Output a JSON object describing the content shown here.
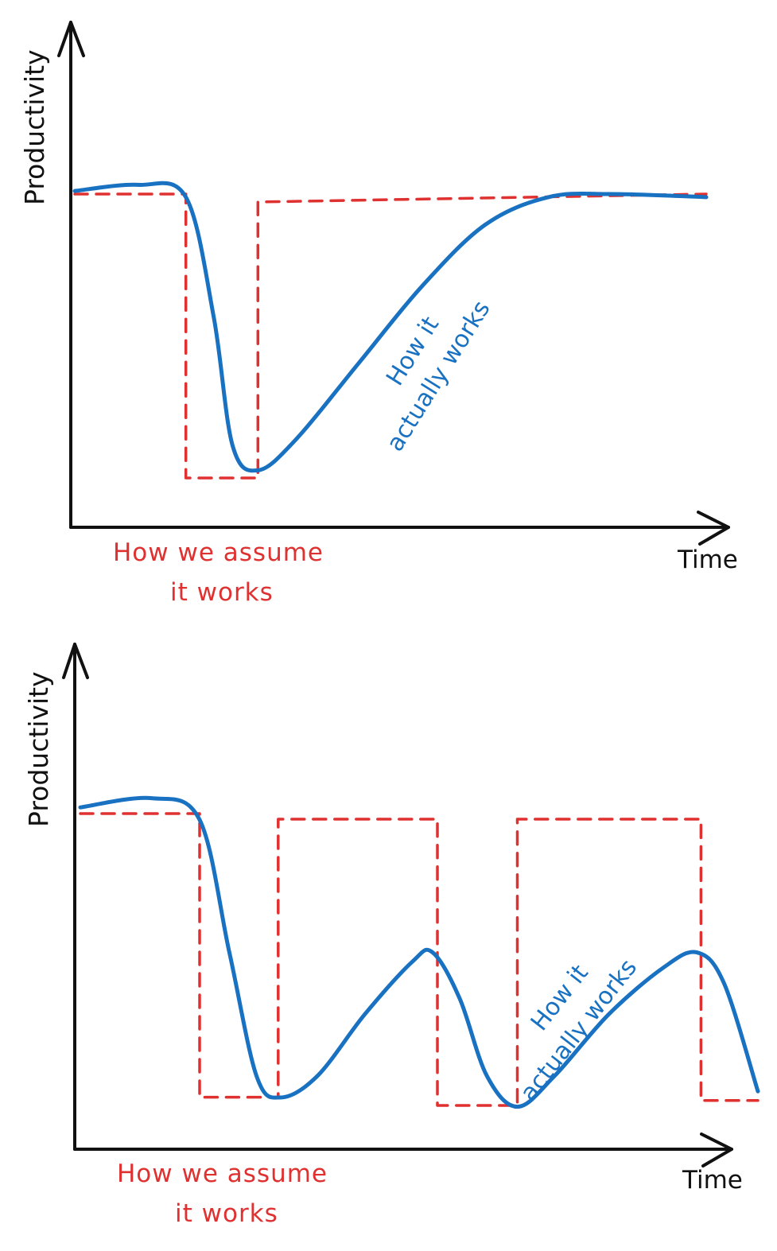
{
  "colors": {
    "axis": "#111111",
    "assumed": "#e03131",
    "actual": "#1971c2"
  },
  "chart_data": [
    {
      "type": "line",
      "xlabel": "Time",
      "ylabel": "Productivity",
      "xlim": [
        0,
        100
      ],
      "ylim": [
        0,
        100
      ],
      "series": [
        {
          "name": "How we assume it works",
          "style": "dashed",
          "color": "#e03131",
          "x": [
            0,
            17.6,
            17.6,
            29.0,
            29.0,
            100
          ],
          "y": [
            100,
            100,
            7.5,
            7.5,
            97.4,
            100
          ]
        },
        {
          "name": "How it actually works",
          "style": "solid",
          "color": "#1971c2",
          "x": [
            0,
            10,
            17.6,
            22,
            25,
            29.0,
            35,
            45,
            55,
            65,
            75,
            85,
            100
          ],
          "y": [
            101,
            103,
            99,
            60,
            18,
            10,
            20,
            45,
            70,
            90,
            99,
            100,
            99
          ]
        }
      ],
      "annotations": [
        {
          "text": "How we assume\nit works",
          "series": "How we assume it works"
        },
        {
          "text": "How it\nactually works",
          "series": "How it actually works"
        }
      ]
    },
    {
      "type": "line",
      "xlabel": "Time",
      "ylabel": "Productivity",
      "xlim": [
        0,
        100
      ],
      "ylim": [
        0,
        100
      ],
      "series": [
        {
          "name": "How we assume it works",
          "style": "dashed",
          "color": "#e03131",
          "x": [
            0,
            17.6,
            17.6,
            29.2,
            29.2,
            52.7,
            52.7,
            64.5,
            64.5,
            91.6,
            91.6,
            100
          ],
          "y": [
            100,
            100,
            8.1,
            8.1,
            98.2,
            98.2,
            5.4,
            5.4,
            98.2,
            98.2,
            7.0,
            7.0
          ]
        },
        {
          "name": "How it actually works",
          "style": "solid",
          "color": "#1971c2",
          "x": [
            0,
            10.5,
            17.6,
            22,
            26,
            29.5,
            35,
            42,
            49,
            52,
            56,
            60,
            64.5,
            70,
            78,
            86,
            91,
            95,
            100
          ],
          "y": [
            102,
            105,
            98,
            55,
            15,
            8,
            15,
            35,
            52,
            55,
            40,
            15,
            5,
            15,
            35,
            50,
            55,
            45,
            10
          ]
        }
      ],
      "annotations": [
        {
          "text": "How we assume\nit works",
          "series": "How we assume it works"
        },
        {
          "text": "How it\nactually works",
          "series": "How it actually works"
        }
      ]
    }
  ]
}
